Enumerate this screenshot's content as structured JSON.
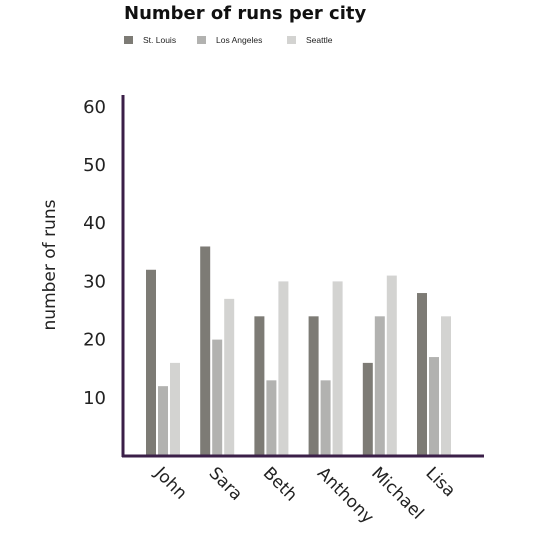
{
  "chart_data": {
    "type": "bar",
    "title": "Number of runs per city",
    "xlabel": "",
    "ylabel": "number of runs",
    "ylim": [
      0,
      63
    ],
    "yticks": [
      10,
      20,
      30,
      40,
      50,
      60
    ],
    "categories": [
      "John",
      "Sara",
      "Beth",
      "Anthony",
      "Michael",
      "Lisa"
    ],
    "series": [
      {
        "name": "St. Louis",
        "color": "#7d7b75",
        "values": [
          32,
          36,
          24,
          24,
          16,
          28
        ]
      },
      {
        "name": "Los Angeles",
        "color": "#b2b2b0",
        "values": [
          12,
          20,
          13,
          13,
          24,
          17
        ]
      },
      {
        "name": "Seattle",
        "color": "#d3d3d1",
        "values": [
          16,
          27,
          30,
          30,
          31,
          24
        ]
      }
    ],
    "legend_position": "top-left",
    "axis_color": "#3b1f48"
  }
}
